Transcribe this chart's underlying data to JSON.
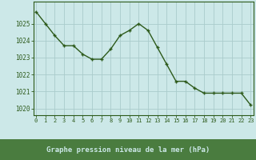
{
  "x": [
    0,
    1,
    2,
    3,
    4,
    5,
    6,
    7,
    8,
    9,
    10,
    11,
    12,
    13,
    14,
    15,
    16,
    17,
    18,
    19,
    20,
    21,
    22,
    23
  ],
  "y": [
    1025.7,
    1025.0,
    1024.3,
    1023.7,
    1023.7,
    1023.2,
    1022.9,
    1022.9,
    1023.5,
    1024.3,
    1024.6,
    1025.0,
    1024.6,
    1023.6,
    1022.6,
    1021.6,
    1021.6,
    1021.2,
    1020.9,
    1020.9,
    1020.9,
    1020.9,
    1020.9,
    1020.2
  ],
  "line_color": "#2d5a1b",
  "marker": "+",
  "bg_color": "#cce8e8",
  "grid_color": "#aacccc",
  "xlabel": "Graphe pression niveau de la mer (hPa)",
  "xlabel_color": "#2d5a1b",
  "tick_color": "#2d5a1b",
  "ylim_min": 1019.6,
  "ylim_max": 1026.3,
  "yticks": [
    1020,
    1021,
    1022,
    1023,
    1024,
    1025
  ],
  "xticks": [
    0,
    1,
    2,
    3,
    4,
    5,
    6,
    7,
    8,
    9,
    10,
    11,
    12,
    13,
    14,
    15,
    16,
    17,
    18,
    19,
    20,
    21,
    22,
    23
  ],
  "xtick_labels": [
    "0",
    "1",
    "2",
    "3",
    "4",
    "5",
    "6",
    "7",
    "8",
    "9",
    "10",
    "11",
    "12",
    "13",
    "14",
    "15",
    "16",
    "17",
    "18",
    "19",
    "20",
    "21",
    "22",
    "23"
  ],
  "axis_color": "#2d5a1b",
  "marker_size": 3.5,
  "line_width": 1.0,
  "xlabel_bg": "#4a7c3f",
  "xlabel_fg": "#cce8e8"
}
